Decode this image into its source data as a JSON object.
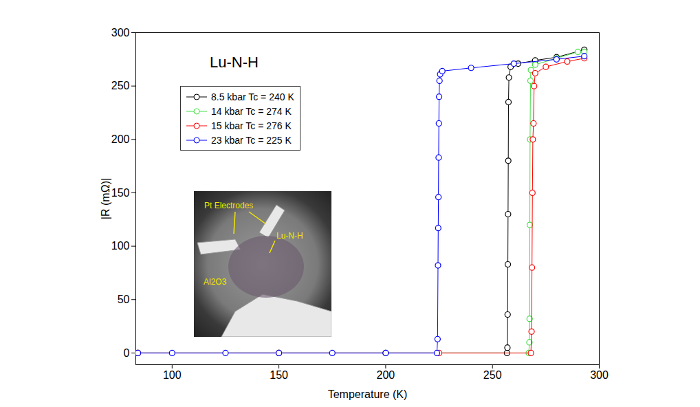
{
  "chart_data": {
    "type": "line",
    "title": "Lu-N-H",
    "xlabel": "Temperature (K)",
    "ylabel": "|R (mΩ)|",
    "xlim": [
      83,
      300
    ],
    "ylim": [
      -11,
      300
    ],
    "xticks": [
      100,
      150,
      200,
      250,
      300
    ],
    "yticks": [
      0,
      50,
      100,
      150,
      200,
      250,
      300
    ],
    "legend": "top-left",
    "marker": "circle",
    "series": [
      {
        "name": "8.5 kbar Tc = 240 K",
        "color": "#000000",
        "x": [
          84,
          150,
          200,
          256.8,
          257,
          257.1,
          257.2,
          257.3,
          257.4,
          257.5,
          257.7,
          258.5,
          262,
          270,
          280,
          293
        ],
        "values": [
          0,
          0,
          0,
          0,
          5,
          36,
          83,
          130,
          180,
          235,
          258,
          268,
          271,
          274,
          277,
          284
        ]
      },
      {
        "name": "14 kbar Tc = 274 K",
        "color": "#44dd44",
        "x": [
          84,
          150,
          267,
          267.3,
          267.4,
          267.5,
          267.6,
          267.8,
          268,
          270,
          280,
          290,
          293
        ],
        "values": [
          0,
          0,
          0,
          10,
          32,
          120,
          200,
          255,
          265,
          270,
          276,
          282,
          282
        ]
      },
      {
        "name": "15 kbar Tc = 276 K",
        "color": "#ff0000",
        "x": [
          84,
          150,
          225,
          268,
          268.3,
          268.5,
          268.7,
          268.9,
          269.2,
          269.5,
          270,
          275,
          285,
          293
        ],
        "values": [
          0,
          0,
          0,
          0,
          20,
          80,
          150,
          200,
          215,
          250,
          262,
          268,
          273,
          276
        ]
      },
      {
        "name": "23 kbar Tc = 225 K",
        "color": "#0000ff",
        "x": [
          84,
          100,
          125,
          150,
          175,
          200,
          224,
          224.3,
          224.5,
          224.6,
          224.7,
          224.8,
          224.9,
          225,
          225.2,
          225.5,
          226.5,
          240,
          260,
          280,
          293
        ],
        "values": [
          0,
          0,
          0,
          0,
          0,
          0,
          0,
          13,
          82,
          117,
          146,
          183,
          215,
          240,
          255,
          261,
          264,
          267,
          271,
          275,
          278
        ]
      }
    ],
    "annotations": [
      {
        "text": "Pt Electrodes"
      },
      {
        "text": "Lu-N-H"
      },
      {
        "text": "Al2O3"
      }
    ]
  }
}
